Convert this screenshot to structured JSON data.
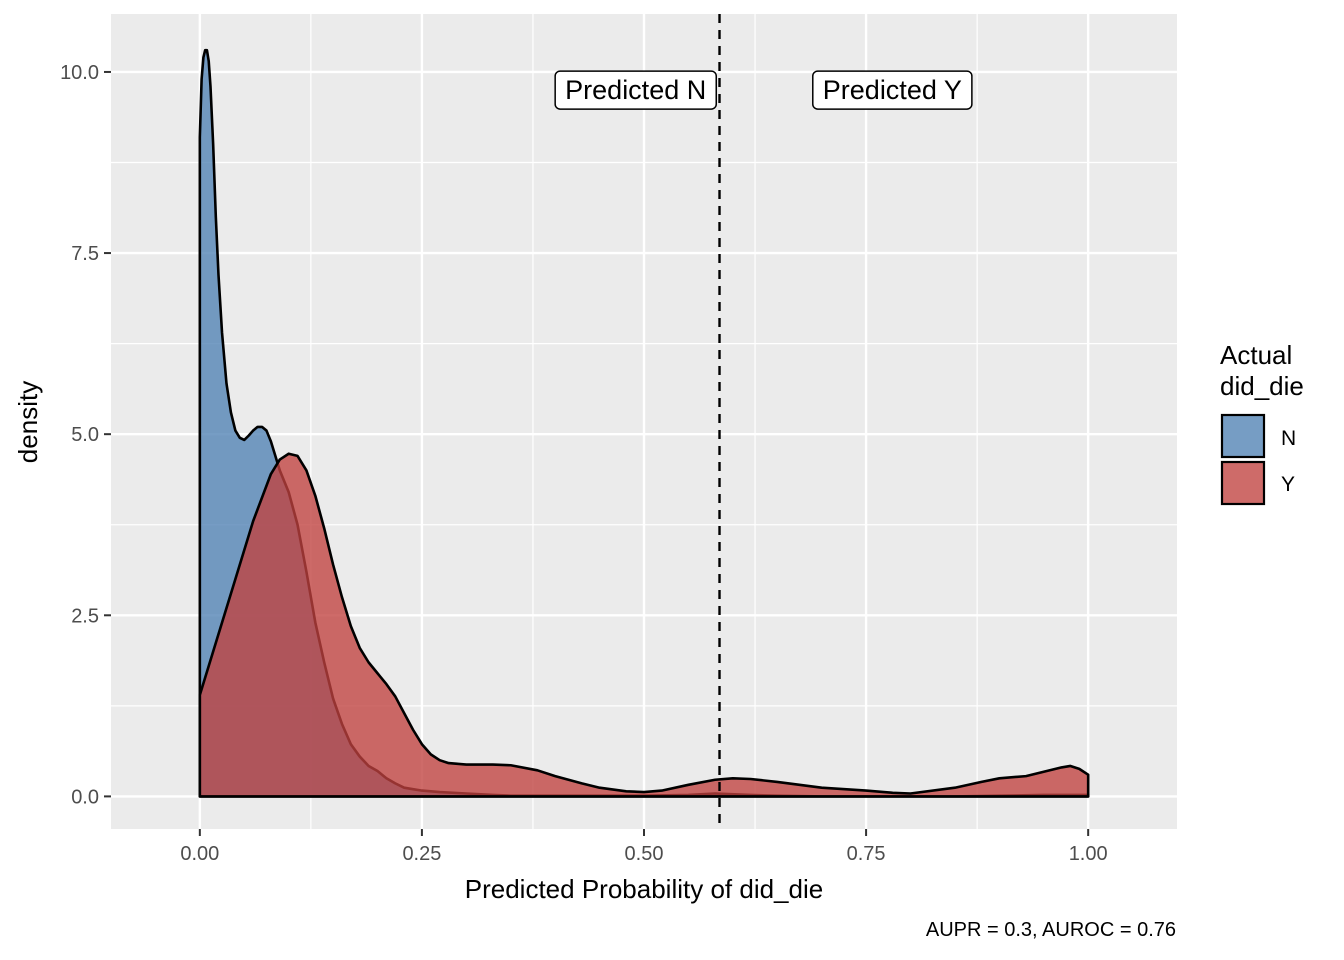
{
  "chart_data": {
    "type": "area",
    "title": "",
    "xlabel": "Predicted Probability of did_die",
    "ylabel": "density",
    "caption": "AUPR = 0.3, AUROC = 0.76",
    "xlim": [
      -0.1,
      1.1
    ],
    "ylim": [
      -0.45,
      10.8
    ],
    "x_ticks": [
      0,
      0.25,
      0.5,
      0.75,
      1.0
    ],
    "x_tick_labels": [
      "0.00",
      "0.25",
      "0.50",
      "0.75",
      "1.00"
    ],
    "y_ticks": [
      0,
      2.5,
      5.0,
      7.5,
      10.0
    ],
    "y_tick_labels": [
      "0.0",
      "2.5",
      "5.0",
      "7.5",
      "10.0"
    ],
    "grid": true,
    "threshold": 0.585,
    "annotations": [
      {
        "text": "Predicted N",
        "x": 0.4,
        "y": 9.75,
        "anchor": "left-of-threshold"
      },
      {
        "text": "Predicted Y",
        "x": 0.69,
        "y": 9.75,
        "anchor": "right-of-threshold"
      }
    ],
    "legend": {
      "title_lines": [
        "Actual",
        "did_die"
      ],
      "position": "right"
    },
    "series": [
      {
        "name": "N",
        "color": "#4F81B4",
        "x": [
          0,
          0.002,
          0.004,
          0.006,
          0.008,
          0.01,
          0.012,
          0.015,
          0.018,
          0.021,
          0.025,
          0.03,
          0.035,
          0.04,
          0.045,
          0.05,
          0.055,
          0.06,
          0.065,
          0.07,
          0.075,
          0.08,
          0.085,
          0.09,
          0.1,
          0.11,
          0.12,
          0.13,
          0.14,
          0.15,
          0.16,
          0.17,
          0.18,
          0.19,
          0.2,
          0.21,
          0.22,
          0.23,
          0.24,
          0.25,
          0.27,
          0.3,
          0.33,
          0.35,
          0.38,
          0.4,
          0.45,
          0.5,
          0.55,
          0.58,
          0.62,
          0.65,
          0.7,
          0.75,
          0.8,
          0.85,
          0.9,
          0.95,
          1.0
        ],
        "y": [
          9.1,
          9.9,
          10.2,
          10.3,
          10.3,
          10.15,
          9.8,
          9.0,
          8.0,
          7.2,
          6.4,
          5.7,
          5.3,
          5.05,
          4.95,
          4.92,
          4.98,
          5.05,
          5.1,
          5.1,
          5.05,
          4.9,
          4.7,
          4.5,
          4.2,
          3.75,
          3.1,
          2.4,
          1.85,
          1.35,
          1.0,
          0.72,
          0.55,
          0.42,
          0.35,
          0.25,
          0.18,
          0.12,
          0.1,
          0.08,
          0.06,
          0.04,
          0.02,
          0.01,
          0.01,
          0.01,
          0.01,
          0.01,
          0.02,
          0.04,
          0.02,
          0.01,
          0.0,
          0.0,
          0.0,
          0.0,
          0.01,
          0.02,
          0.02
        ]
      },
      {
        "name": "Y",
        "color": "#C0413F",
        "x": [
          0,
          0.02,
          0.04,
          0.06,
          0.08,
          0.09,
          0.1,
          0.11,
          0.12,
          0.13,
          0.14,
          0.15,
          0.16,
          0.17,
          0.18,
          0.19,
          0.2,
          0.21,
          0.22,
          0.23,
          0.24,
          0.25,
          0.26,
          0.27,
          0.28,
          0.3,
          0.33,
          0.35,
          0.38,
          0.4,
          0.43,
          0.45,
          0.48,
          0.5,
          0.52,
          0.55,
          0.58,
          0.6,
          0.62,
          0.65,
          0.7,
          0.75,
          0.78,
          0.8,
          0.85,
          0.88,
          0.9,
          0.93,
          0.95,
          0.97,
          0.98,
          0.99,
          1.0
        ],
        "y": [
          1.4,
          2.2,
          3.0,
          3.8,
          4.45,
          4.65,
          4.73,
          4.7,
          4.5,
          4.15,
          3.7,
          3.2,
          2.75,
          2.35,
          2.05,
          1.85,
          1.7,
          1.55,
          1.38,
          1.15,
          0.92,
          0.72,
          0.58,
          0.5,
          0.46,
          0.44,
          0.44,
          0.43,
          0.36,
          0.28,
          0.18,
          0.12,
          0.07,
          0.06,
          0.08,
          0.16,
          0.23,
          0.25,
          0.24,
          0.2,
          0.12,
          0.08,
          0.05,
          0.04,
          0.12,
          0.2,
          0.25,
          0.28,
          0.34,
          0.4,
          0.42,
          0.38,
          0.3
        ]
      }
    ]
  }
}
